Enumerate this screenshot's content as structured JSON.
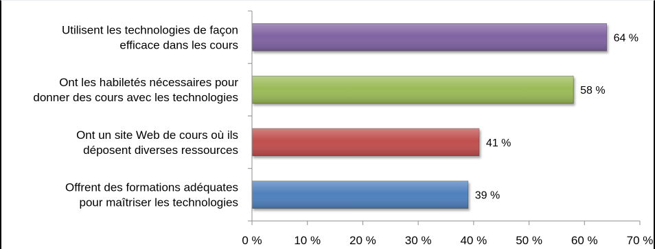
{
  "chart_data": {
    "type": "bar",
    "orientation": "horizontal",
    "categories": [
      [
        "Utilisent les technologies de façon",
        "efficace dans les cours"
      ],
      [
        "Ont les habiletés nécessaires pour",
        "donner des cours avec les technologies"
      ],
      [
        "Ont un site Web de cours où ils",
        "déposent diverses ressources"
      ],
      [
        "Offrent des formations adéquates",
        "pour maîtriser les technologies"
      ]
    ],
    "values": [
      64,
      58,
      41,
      39
    ],
    "data_labels": [
      "64 %",
      "58 %",
      "41 %",
      "39 %"
    ],
    "bar_colors": [
      "#8064a2",
      "#9bbb59",
      "#c0504d",
      "#4f81bd"
    ],
    "xlim": [
      0,
      70
    ],
    "ticks": [
      0,
      10,
      20,
      30,
      40,
      50,
      60,
      70
    ],
    "tick_labels": [
      "0 %",
      "10 %",
      "20 %",
      "30 %",
      "40 %",
      "50 %",
      "60 %",
      "70 %"
    ],
    "grid": false,
    "legend": "none",
    "title": "",
    "xlabel": "",
    "ylabel": ""
  }
}
